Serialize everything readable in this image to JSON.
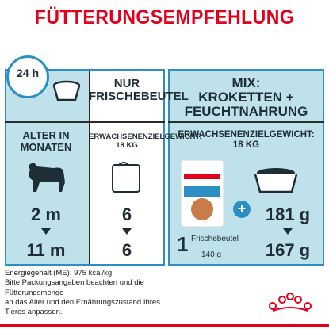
{
  "title": "FÜTTERUNGSEMPFEHLUNG",
  "clock_label": "24 h",
  "columns": {
    "nur": {
      "header": "NUR\nFRISCHEBEUTEL",
      "subheader": "ERWACHSENENZIELGEWICHT:\n18 KG"
    },
    "mix": {
      "header": "MIX:\nKROKETTEN +\nFEUCHTNAHRUNG",
      "subheader": "ERWACHSENENZIELGEWICHT:\n18 KG"
    }
  },
  "age_header": "ALTER IN\nMONATEN",
  "rows": [
    {
      "age": "2 m",
      "nur": "6",
      "mix": "181 g"
    },
    {
      "age": "11 m",
      "nur": "6",
      "mix": "167 g"
    }
  ],
  "pouch_count": "1",
  "pouch_label": "Frischebeutel",
  "pouch_weight": "140 g",
  "footer_lines": [
    "Energiegehalt (ME): 975 kcal/kg.",
    "Bitte Packungsangaben beachten und die",
    "Fütterungsmenge",
    "an das Alter und den Ernährungszustand Ihres",
    "Tieres anpassen."
  ],
  "colors": {
    "accent_red": "#e2001a",
    "panel_blue": "#bfe2ea",
    "frame_blue": "#2b8ec4"
  },
  "icons": [
    "clock-icon",
    "bowl-icon",
    "puppy-icon",
    "pouch-icon",
    "product-pouch-icon",
    "kibble-bowl-icon",
    "plus-icon",
    "royal-canin-crown-logo"
  ]
}
